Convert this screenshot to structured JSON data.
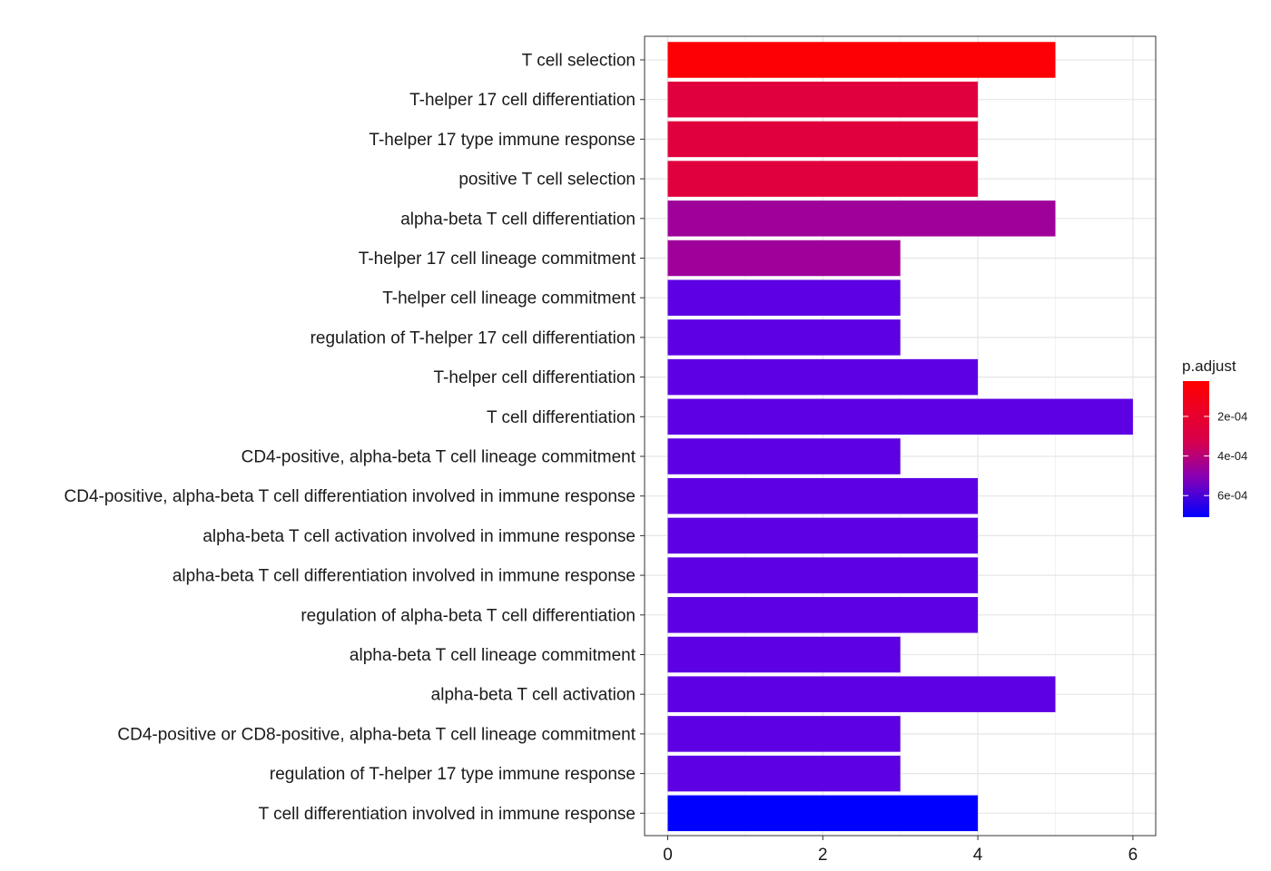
{
  "chart_data": {
    "type": "bar",
    "orientation": "horizontal",
    "title": "",
    "xlabel": "",
    "ylabel": "",
    "xlim": [
      -0.3,
      6.3
    ],
    "xticks": [
      0,
      2,
      4,
      6
    ],
    "grid": true,
    "categories": [
      "T cell selection",
      "T-helper 17 cell differentiation",
      "T-helper 17 type immune response",
      "positive T cell selection",
      "alpha-beta T cell differentiation",
      "T-helper 17 cell lineage commitment",
      "T-helper cell lineage commitment",
      "regulation of T-helper 17 cell differentiation",
      "T-helper cell differentiation",
      "T cell differentiation",
      "CD4-positive, alpha-beta T cell lineage commitment",
      "CD4-positive, alpha-beta T cell differentiation involved in immune response",
      "alpha-beta T cell activation involved in immune response",
      "alpha-beta T cell differentiation involved in immune response",
      "regulation of alpha-beta T cell differentiation",
      "alpha-beta T cell lineage commitment",
      "alpha-beta T cell activation",
      "CD4-positive or CD8-positive, alpha-beta T cell lineage commitment",
      "regulation of T-helper 17 type immune response",
      "T cell differentiation involved in immune response"
    ],
    "values": [
      5,
      4,
      4,
      4,
      5,
      3,
      3,
      3,
      4,
      6,
      3,
      4,
      4,
      4,
      4,
      3,
      5,
      3,
      3,
      4
    ],
    "p_adjust": [
      2.14e-05,
      0.000133,
      0.000133,
      0.000133,
      0.000303,
      0.000303,
      0.000555,
      0.000555,
      0.000555,
      0.000555,
      0.000555,
      0.000555,
      0.000555,
      0.000555,
      0.000555,
      0.000555,
      0.000555,
      0.000555,
      0.000555,
      0.000709
    ],
    "legend": {
      "title": "p.adjust",
      "placement": "right",
      "ticks": [
        {
          "value": 0.0002,
          "label": "2e-04"
        },
        {
          "value": 0.0004,
          "label": "4e-04"
        },
        {
          "value": 0.0006,
          "label": "6e-04"
        }
      ],
      "min": 2.14e-05,
      "max": 0.000709,
      "low_color": "#ff0000",
      "high_color": "#0000ff"
    },
    "bar_colors": [
      "#fc0006",
      "#e1003e",
      "#e1003e",
      "#e1003e",
      "#a0009a",
      "#a0009a",
      "#5d00e3",
      "#5d00e3",
      "#5d00e3",
      "#5d00e3",
      "#5d00e3",
      "#5d00e3",
      "#5d00e3",
      "#5d00e3",
      "#5d00e3",
      "#5d00e3",
      "#5d00e3",
      "#5d00e3",
      "#5d00e3",
      "#0000ff"
    ]
  }
}
